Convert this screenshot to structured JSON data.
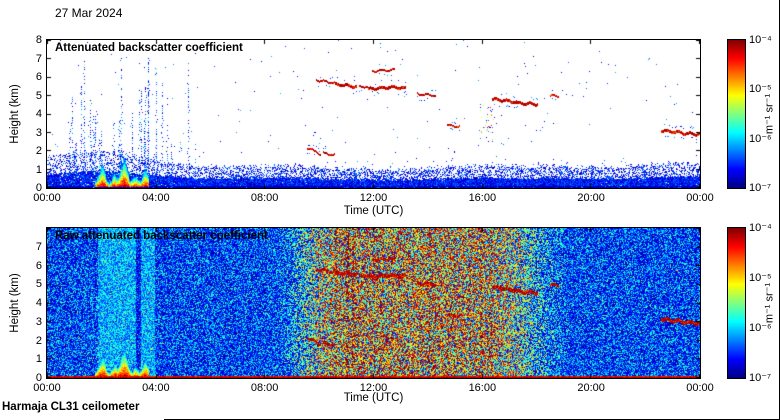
{
  "figure": {
    "date_label": "27 Mar 2024",
    "footer": "Harmaja CL31 ceilometer"
  },
  "panels": [
    {
      "id": "attenuated",
      "title": "Attenuated backscatter coefficient",
      "xlabel": "Time (UTC)",
      "ylabel": "Height (km)",
      "xticks": [
        "00:00",
        "04:00",
        "08:00",
        "12:00",
        "16:00",
        "20:00",
        "00:00"
      ],
      "yticks": [
        "0",
        "1",
        "2",
        "3",
        "4",
        "5",
        "6",
        "7",
        "8"
      ],
      "colorbar": {
        "ticks": [
          "10⁻⁴",
          "10⁻⁵",
          "10⁻⁶",
          "10⁻⁷"
        ],
        "units": "m⁻¹ sr⁻¹"
      }
    },
    {
      "id": "raw",
      "title": "Raw attenuated backscatter coefficient",
      "xlabel": "Time (UTC)",
      "ylabel": "Height (km)",
      "xticks": [
        "00:00",
        "04:00",
        "08:00",
        "12:00",
        "16:00",
        "20:00",
        "00:00"
      ],
      "yticks": [
        "0",
        "1",
        "2",
        "3",
        "4",
        "5",
        "6",
        "7"
      ],
      "colorbar": {
        "ticks": [
          "10⁻⁴",
          "10⁻⁵",
          "10⁻⁶",
          "10⁻⁷"
        ],
        "units": "m⁻¹ sr⁻¹"
      }
    }
  ],
  "chart_data": [
    {
      "type": "heatmap",
      "title": "Attenuated backscatter coefficient",
      "xlabel": "Time (UTC)",
      "ylabel": "Height (km)",
      "x_hours": [
        0,
        24
      ],
      "xtick_labels": [
        "00:00",
        "04:00",
        "08:00",
        "12:00",
        "16:00",
        "20:00",
        "00:00"
      ],
      "ylim_km": [
        0,
        8
      ],
      "colorbar": {
        "colormap": "jet",
        "scale": "log10",
        "min": 1e-07,
        "max": 0.0001,
        "tick_labels": [
          "10⁻⁴",
          "10⁻⁵",
          "10⁻⁶",
          "10⁻⁷"
        ],
        "units": "m⁻¹ sr⁻¹"
      },
      "features": {
        "boundary_layer": {
          "t": [
            0,
            24
          ],
          "h_km": [
            0,
            0.9
          ],
          "description": "dense blue near-surface backscatter band along the whole day"
        },
        "precipitation_spikes": {
          "t": [
            0.6,
            5.6
          ],
          "h_top_km": [
            1.5,
            7.2
          ],
          "description": "vertical dotted blue columns reaching up to 7 km between about 00:40 and 05:30"
        },
        "fog_precip_plume": {
          "t": [
            1.75,
            3.72
          ],
          "h_top_max_km": 1.75,
          "description": "strong red/yellow/green plume below about 1.7 km around 02:00-03:40"
        },
        "scatter_cluster": {
          "t": [
            15.9,
            16.4
          ],
          "h_km": [
            2.5,
            4.5
          ],
          "description": "scattered mixed-color echoes around 16:00"
        },
        "cloud_layers": [
          {
            "t0": 9.55,
            "t1": 10.05,
            "h": 2.15,
            "dh": -0.35,
            "px": 2
          },
          {
            "t0": 10.15,
            "t1": 10.55,
            "h": 1.85,
            "dh": -0.1,
            "px": 2
          },
          {
            "t0": 9.9,
            "t1": 10.55,
            "h": 5.8,
            "dh": -0.15,
            "px": 2
          },
          {
            "t0": 10.6,
            "t1": 11.35,
            "h": 5.6,
            "dh": -0.12,
            "px": 3
          },
          {
            "t0": 11.45,
            "t1": 11.75,
            "h": 5.45,
            "dh": 0,
            "px": 2
          },
          {
            "t0": 11.8,
            "t1": 12.55,
            "h": 5.35,
            "dh": 0.08,
            "px": 3
          },
          {
            "t0": 12.55,
            "t1": 13.15,
            "h": 5.45,
            "dh": -0.05,
            "px": 3
          },
          {
            "t0": 11.95,
            "t1": 12.75,
            "h": 6.3,
            "dh": 0.05,
            "px": 2
          },
          {
            "t0": 13.6,
            "t1": 14.25,
            "h": 5.05,
            "dh": -0.08,
            "px": 2
          },
          {
            "t0": 14.7,
            "t1": 15.15,
            "h": 3.35,
            "dh": -0.05,
            "px": 2
          },
          {
            "t0": 16.35,
            "t1": 17.25,
            "h": 4.8,
            "dh": -0.15,
            "px": 3
          },
          {
            "t0": 17.25,
            "t1": 18.0,
            "h": 4.6,
            "dh": -0.08,
            "px": 3
          },
          {
            "t0": 18.5,
            "t1": 18.78,
            "h": 4.95,
            "dh": 0,
            "px": 2
          },
          {
            "t0": 22.55,
            "t1": 23.35,
            "h": 3.1,
            "dh": -0.12,
            "px": 3
          },
          {
            "t0": 23.35,
            "t1": 24.0,
            "h": 2.95,
            "dh": -0.05,
            "px": 3
          }
        ]
      }
    },
    {
      "type": "heatmap",
      "title": "Raw attenuated backscatter coefficient",
      "xlabel": "Time (UTC)",
      "ylabel": "Height (km)",
      "x_hours": [
        0,
        24
      ],
      "xtick_labels": [
        "00:00",
        "04:00",
        "08:00",
        "12:00",
        "16:00",
        "20:00",
        "00:00"
      ],
      "ylim_km": [
        0,
        8
      ],
      "colorbar": {
        "colormap": "jet",
        "scale": "log10",
        "min": 1e-07,
        "max": 0.0001,
        "tick_labels": [
          "10⁻⁴",
          "10⁻⁵",
          "10⁻⁶",
          "10⁻⁷"
        ],
        "units": "m⁻¹ sr⁻¹"
      },
      "features": {
        "background_noise": {
          "t": [
            0,
            24
          ],
          "h_km": [
            0,
            8
          ],
          "daytime_enhancement_t": [
            8.2,
            19.5
          ],
          "description": "full-height speckle noise, blue at night, green/yellow/red enhancement from solar background around 08:30-19:00"
        },
        "attenuated_band": {
          "t": [
            1.85,
            3.95
          ],
          "description": "lighter cyan vertical band of attenuated signal behind the fog/precipitation plume"
        },
        "dark_stripe": {
          "t": [
            3.25,
            3.45
          ],
          "description": "darker blue vertical stripe inside the attenuated band"
        },
        "surface_return": {
          "t": [
            0,
            24
          ],
          "h_km": 0,
          "description": "dark red line at ground level across the whole day"
        },
        "shares_with_panel_1": [
          "fog_precip_plume",
          "cloud_layers"
        ]
      }
    }
  ]
}
